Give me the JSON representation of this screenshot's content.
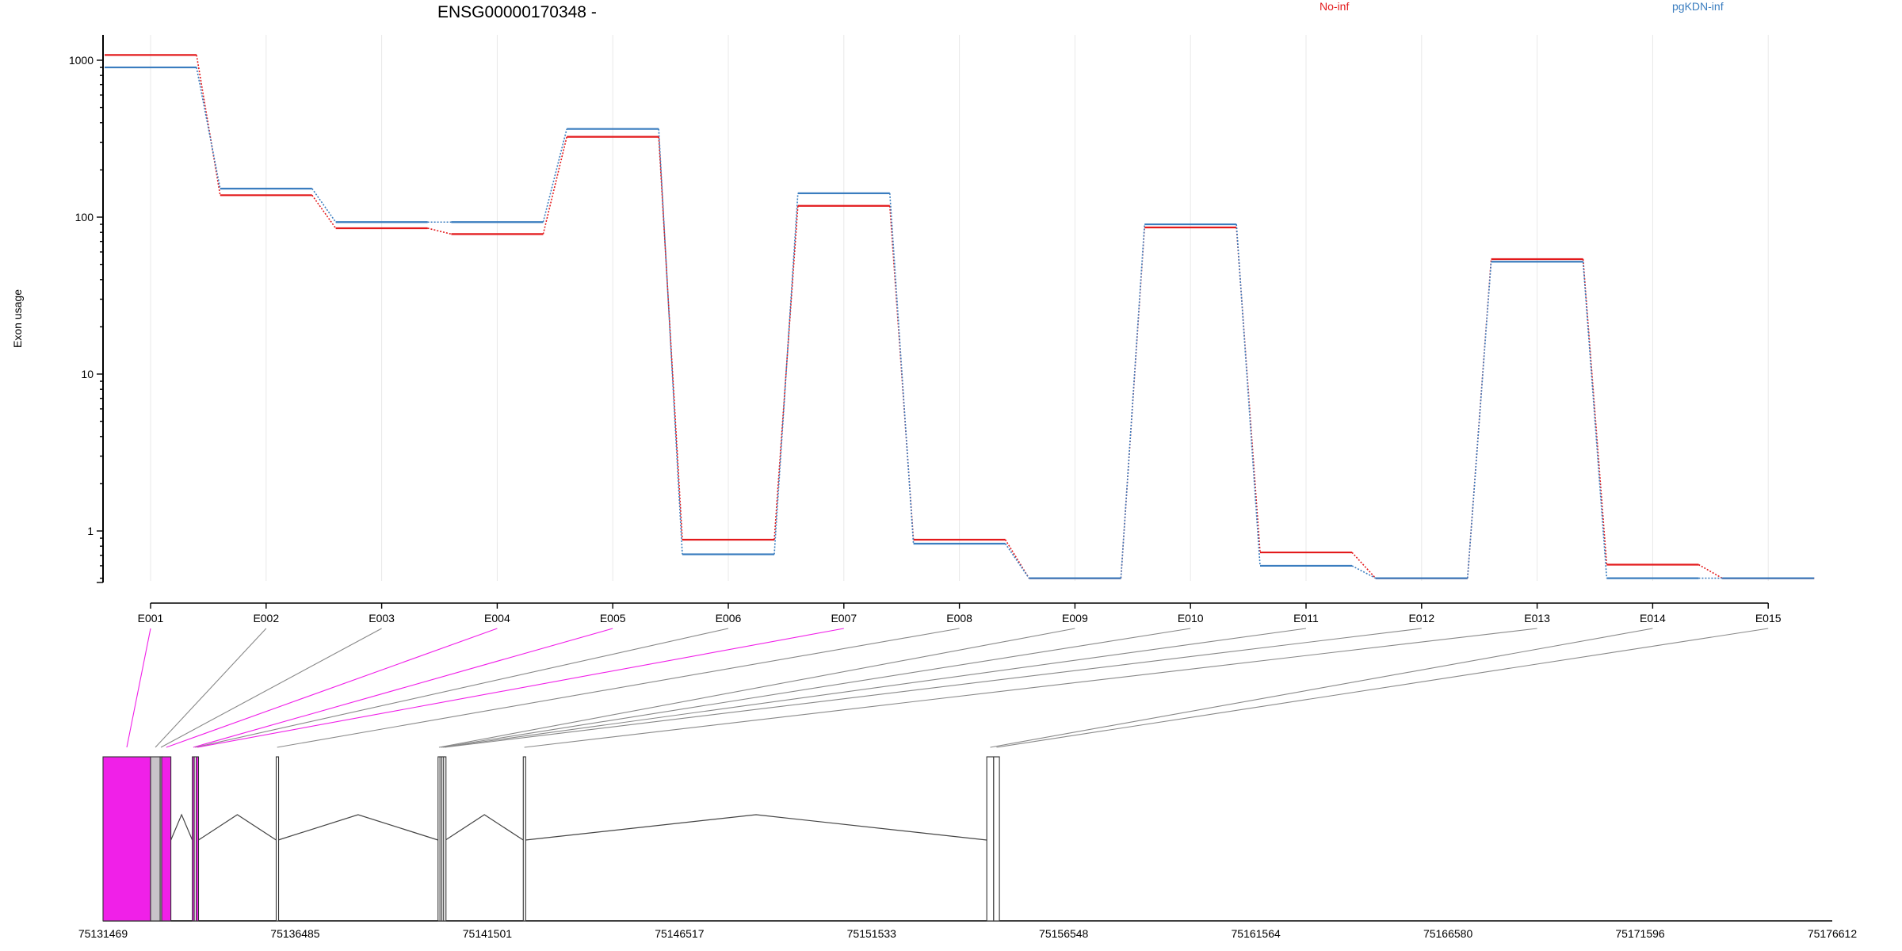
{
  "chart_data": {
    "type": "line",
    "title": "ENSG00000170348 -",
    "ylabel": "Exon usage",
    "xlabel": "",
    "y_scale": "log",
    "ylim": [
      0.5,
      1400
    ],
    "y_ticks": [
      1,
      10,
      100,
      1000
    ],
    "y_tick_labels": [
      "1",
      "10",
      "100",
      "1000"
    ],
    "grid": "vertical",
    "legend_placement": "top",
    "categories": [
      "E001",
      "E002",
      "E003",
      "E004",
      "E005",
      "E006",
      "E007",
      "E008",
      "E009",
      "E010",
      "E011",
      "E012",
      "E013",
      "E014",
      "E015"
    ],
    "series": [
      {
        "name": "No-inf",
        "color": "#e31a1c",
        "values": [
          1080,
          138,
          85,
          78,
          325,
          0.88,
          118,
          0.88,
          0.5,
          86,
          0.73,
          0.5,
          54,
          0.61,
          0.5
        ]
      },
      {
        "name": "pgKDN-inf",
        "color": "#3a7dbf",
        "values": [
          900,
          152,
          93,
          93,
          365,
          0.71,
          142,
          0.83,
          0.5,
          90,
          0.6,
          0.5,
          52,
          0.5,
          0.5
        ]
      }
    ],
    "gene_model": {
      "axis_ticks": [
        75131469,
        75136485,
        75141501,
        75146517,
        75151533,
        75156548,
        75161564,
        75166580,
        75171596,
        75176612
      ],
      "axis_tick_labels": [
        "75131469",
        "75136485",
        "75141501",
        "75146517",
        "75151533",
        "75156548",
        "75161564",
        "75166580",
        "75171596",
        "75176612"
      ],
      "highlight_color": "#f020e8",
      "exons": [
        {
          "id": "E001",
          "start": 75131469,
          "end": 75132710,
          "highlight": true
        },
        {
          "id": "E002",
          "start": 75132710,
          "end": 75132960,
          "highlight": false
        },
        {
          "id": "E003",
          "start": 75132960,
          "end": 75133000,
          "highlight": false
        },
        {
          "id": "E004",
          "start": 75133000,
          "end": 75133240,
          "highlight": true
        },
        {
          "id": "E005",
          "start": 75133800,
          "end": 75133850,
          "highlight": true
        },
        {
          "id": "E006",
          "start": 75133850,
          "end": 75133900,
          "highlight": false
        },
        {
          "id": "E007",
          "start": 75133900,
          "end": 75133960,
          "highlight": true
        },
        {
          "id": "E008",
          "start": 75135990,
          "end": 75136040,
          "highlight": false
        },
        {
          "id": "E009",
          "start": 75140215,
          "end": 75140265,
          "highlight": false
        },
        {
          "id": "E010",
          "start": 75140265,
          "end": 75140315,
          "highlight": false
        },
        {
          "id": "E011",
          "start": 75140315,
          "end": 75140360,
          "highlight": false
        },
        {
          "id": "E012",
          "start": 75140360,
          "end": 75140410,
          "highlight": false
        },
        {
          "id": "E013",
          "start": 75142440,
          "end": 75142495,
          "highlight": false
        },
        {
          "id": "E014",
          "start": 75154540,
          "end": 75154720,
          "highlight": false
        },
        {
          "id": "E015",
          "start": 75154720,
          "end": 75154870,
          "highlight": false
        }
      ]
    }
  }
}
